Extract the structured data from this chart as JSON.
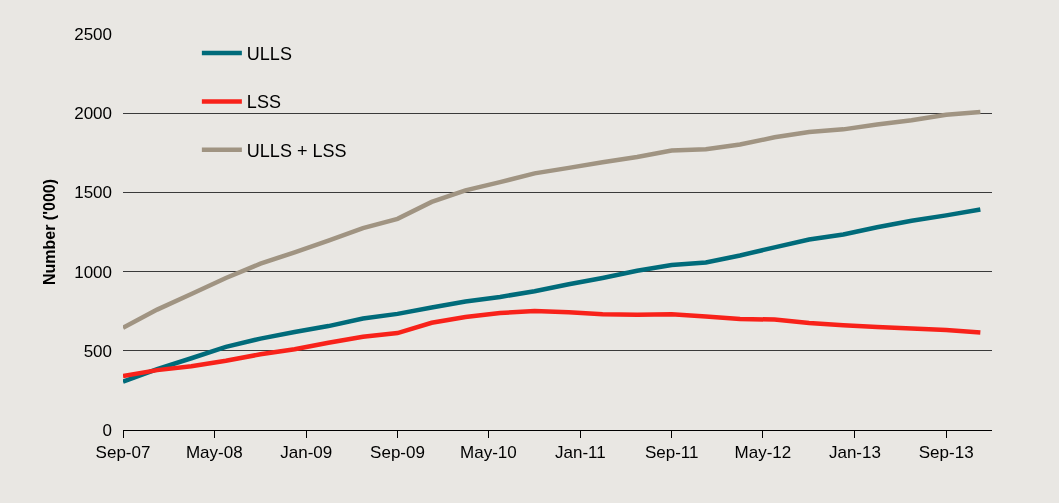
{
  "chart_data": {
    "type": "line",
    "ylabel": "Number ('000)",
    "x": [
      "2007-09",
      "2007-12",
      "2008-03",
      "2008-06",
      "2008-09",
      "2008-12",
      "2009-03",
      "2009-06",
      "2009-09",
      "2009-12",
      "2010-03",
      "2010-06",
      "2010-09",
      "2010-12",
      "2011-03",
      "2011-06",
      "2011-09",
      "2011-12",
      "2012-03",
      "2012-06",
      "2012-09",
      "2012-12",
      "2013-03",
      "2013-06",
      "2013-09",
      "2013-12"
    ],
    "series": [
      {
        "name": "ULLS",
        "color": "#006b7a",
        "values": [
          305,
          385,
          453,
          525,
          577,
          619,
          656,
          704,
          733,
          773,
          811,
          840,
          876,
          920,
          960,
          1005,
          1041,
          1057,
          1102,
          1153,
          1203,
          1234,
          1280,
          1321,
          1355,
          1392
        ]
      },
      {
        "name": "LSS",
        "color": "#f8221a",
        "values": [
          341,
          378,
          402,
          437,
          478,
          510,
          551,
          589,
          612,
          677,
          713,
          738,
          752,
          743,
          731,
          727,
          731,
          717,
          701,
          697,
          676,
          662,
          650,
          640,
          632,
          616
        ]
      },
      {
        "name": "ULLS + LSS",
        "color": "#a09482",
        "values": [
          645,
          760,
          859,
          960,
          1050,
          1122,
          1195,
          1275,
          1333,
          1440,
          1513,
          1565,
          1620,
          1655,
          1690,
          1724,
          1765,
          1772,
          1802,
          1848,
          1881,
          1898,
          1928,
          1955,
          1990,
          2008
        ]
      }
    ],
    "xlim": [
      "2007-09",
      "2014-01"
    ],
    "xticks": [
      {
        "value": "2007-09",
        "label": "Sep-07"
      },
      {
        "value": "2008-05",
        "label": "May-08"
      },
      {
        "value": "2009-01",
        "label": "Jan-09"
      },
      {
        "value": "2009-09",
        "label": "Sep-09"
      },
      {
        "value": "2010-05",
        "label": "May-10"
      },
      {
        "value": "2011-01",
        "label": "Jan-11"
      },
      {
        "value": "2011-09",
        "label": "Sep-11"
      },
      {
        "value": "2012-05",
        "label": "May-12"
      },
      {
        "value": "2013-01",
        "label": "Jan-13"
      },
      {
        "value": "2013-09",
        "label": "Sep-13"
      }
    ],
    "ylim": [
      0,
      2500
    ],
    "yticks": [
      0,
      500,
      1000,
      1500,
      2000,
      2500
    ],
    "grid": "y",
    "legend": "top left"
  }
}
